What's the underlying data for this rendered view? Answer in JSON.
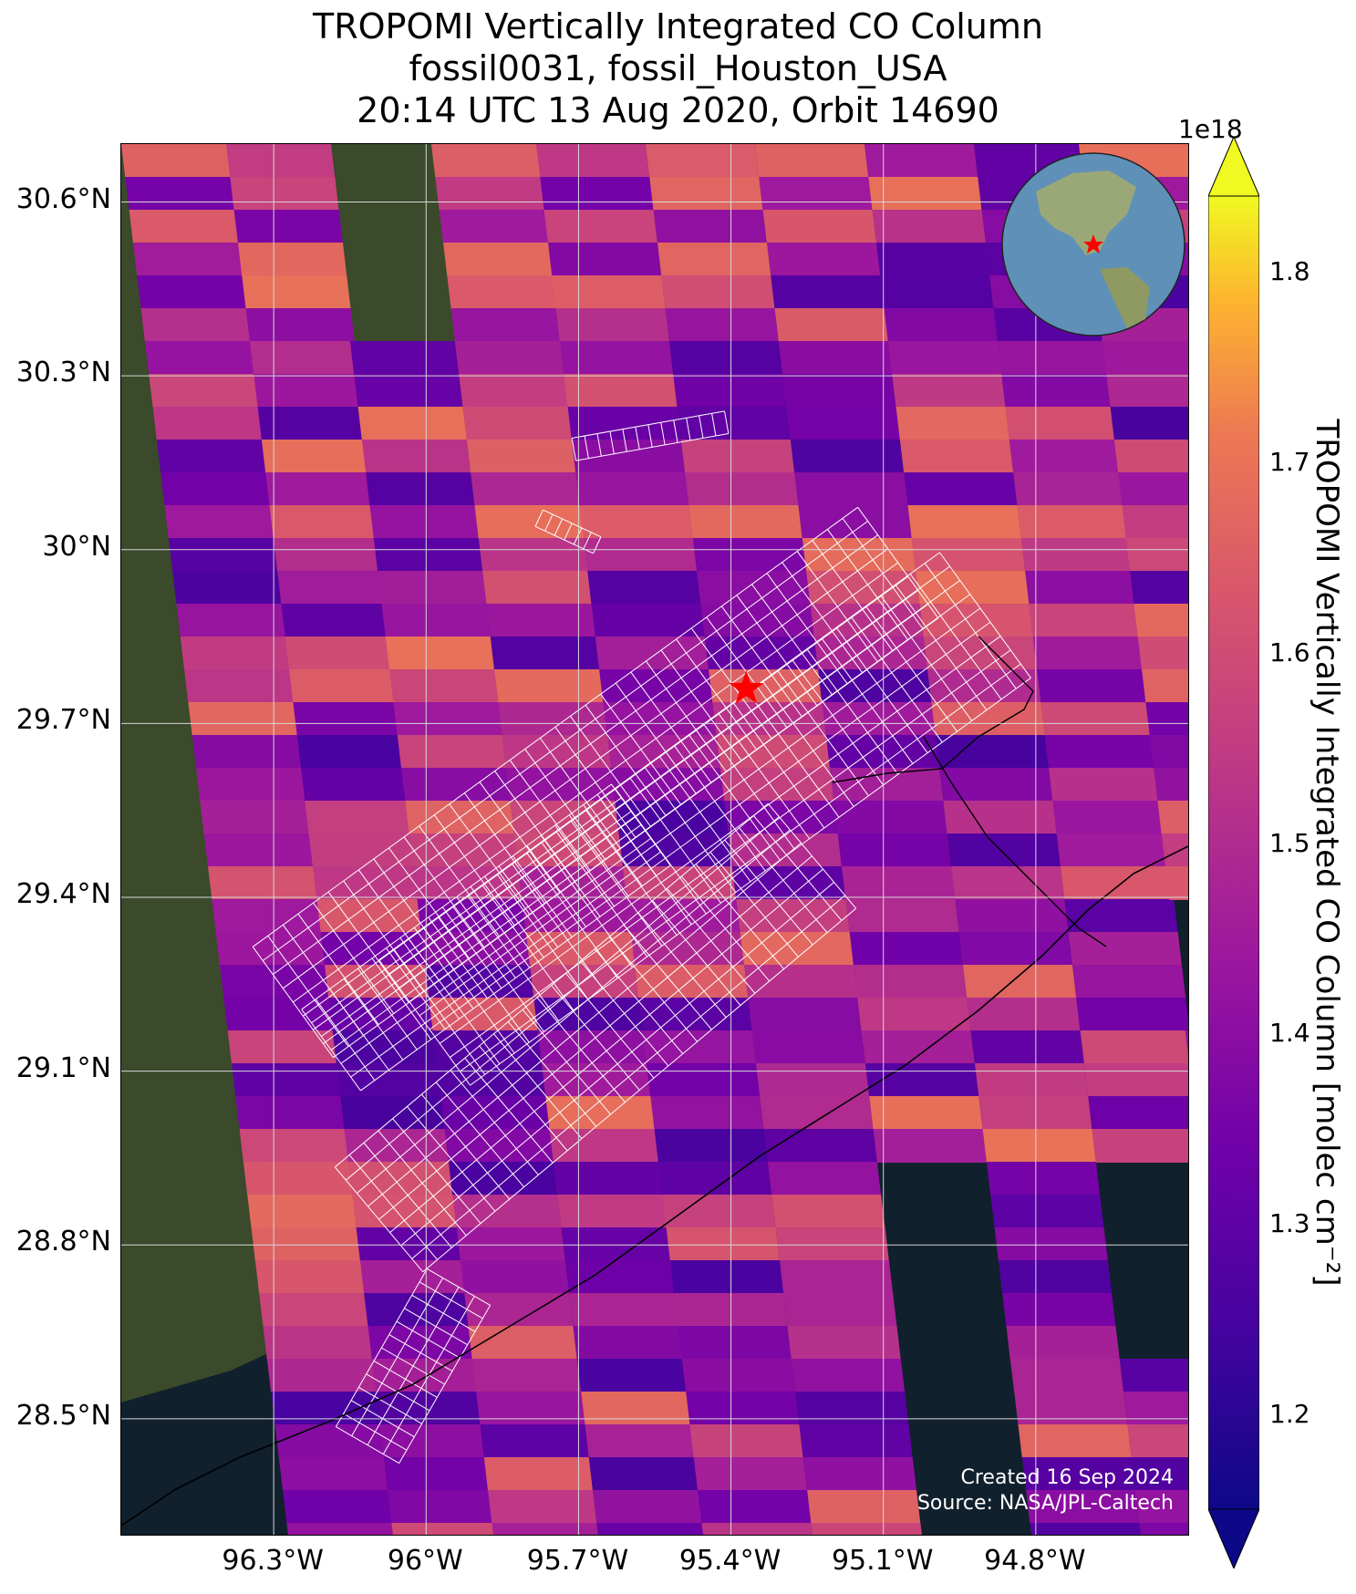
{
  "title": {
    "line1": "TROPOMI Vertically Integrated CO Column",
    "line2": "fossil0031, fossil_Houston_USA",
    "line3": "20:14 UTC 13 Aug 2020, Orbit 14690"
  },
  "axes": {
    "lat_ticks": [
      "30.6°N",
      "30.3°N",
      "30°N",
      "29.7°N",
      "29.4°N",
      "29.1°N",
      "28.8°N",
      "28.5°N"
    ],
    "lon_ticks": [
      "96.3°W",
      "96°W",
      "95.7°W",
      "95.4°W",
      "95.1°W",
      "94.8°W"
    ],
    "lat_values": [
      30.6,
      30.3,
      30.0,
      29.7,
      29.4,
      29.1,
      28.8,
      28.5
    ],
    "lon_values": [
      -96.3,
      -96.0,
      -95.7,
      -95.4,
      -95.1,
      -94.8
    ],
    "lon_range": [
      -96.6,
      -94.5
    ],
    "lat_range": [
      28.3,
      30.7
    ]
  },
  "target": {
    "name": "fossil_Houston_USA",
    "lon": -95.37,
    "lat": 29.76,
    "marker_color": "#ff0000"
  },
  "colorbar": {
    "label": "TROPOMI Vertically Integrated CO Column [molec cm⁻²]",
    "scale": "1e18",
    "ticks": [
      "1.2",
      "1.3",
      "1.4",
      "1.5",
      "1.6",
      "1.7",
      "1.8"
    ],
    "tick_values": [
      1.2,
      1.3,
      1.4,
      1.5,
      1.6,
      1.7,
      1.8
    ],
    "vmin": 1.15,
    "vmax": 1.84,
    "colormap": "plasma"
  },
  "credits": {
    "created": "Created 16 Sep 2024",
    "source": "Source: NASA/JPL-Caltech"
  },
  "colors": {
    "land": "#3a4a2a",
    "ocean": "#10202c",
    "grid": "#d8d8d8",
    "sam_grid": "#ffffff"
  }
}
